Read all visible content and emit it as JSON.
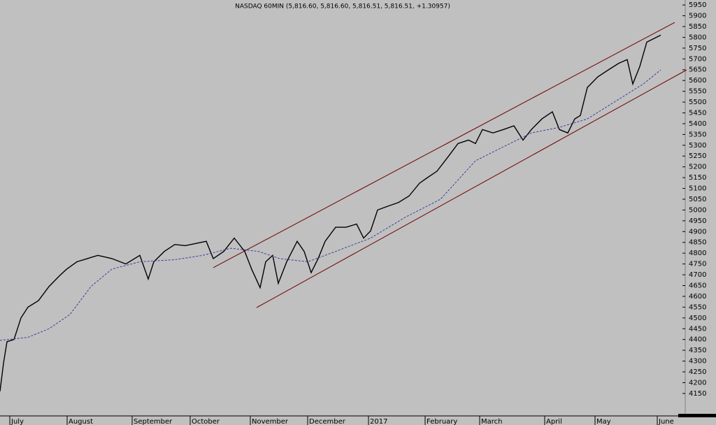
{
  "chart_data": {
    "type": "line",
    "title": "NASDAQ 60MIN (5,816.60, 5,816.60, 5,816.51, 5,816.51, +1.30957)",
    "xlim": [
      0,
      975
    ],
    "xticks": [
      {
        "value": 14,
        "label": "July"
      },
      {
        "value": 96,
        "label": "August"
      },
      {
        "value": 189,
        "label": "September"
      },
      {
        "value": 272,
        "label": "October"
      },
      {
        "value": 358,
        "label": "November"
      },
      {
        "value": 440,
        "label": "December"
      },
      {
        "value": 527,
        "label": "2017"
      },
      {
        "value": 608,
        "label": "February"
      },
      {
        "value": 686,
        "label": "March"
      },
      {
        "value": 779,
        "label": "April"
      },
      {
        "value": 851,
        "label": "May"
      },
      {
        "value": 940,
        "label": "June"
      }
    ],
    "ylim": [
      4046,
      5973
    ],
    "yticks": [
      4150,
      4200,
      4250,
      4300,
      4350,
      4400,
      4450,
      4500,
      4550,
      4600,
      4650,
      4700,
      4750,
      4800,
      4850,
      4900,
      4950,
      5000,
      5050,
      5100,
      5150,
      5200,
      5250,
      5300,
      5350,
      5400,
      5450,
      5500,
      5550,
      5600,
      5650,
      5700,
      5750,
      5800,
      5850,
      5900,
      5950
    ],
    "series": [
      {
        "color": "#000000",
        "style": "solid",
        "x": [
          0,
          5,
          10,
          20,
          30,
          40,
          55,
          70,
          85,
          95,
          110,
          125,
          140,
          160,
          180,
          200,
          212,
          220,
          235,
          250,
          265,
          280,
          295,
          305,
          320,
          335,
          350,
          360,
          372,
          380,
          390,
          398,
          410,
          425,
          435,
          445,
          455,
          465,
          480,
          495,
          510,
          520,
          530,
          540,
          555,
          570,
          585,
          600,
          610,
          625,
          640,
          655,
          670,
          680,
          690,
          705,
          720,
          735,
          748,
          760,
          775,
          790,
          800,
          812,
          822,
          830,
          840,
          855,
          870,
          885,
          897,
          905,
          915,
          925,
          935,
          945
        ],
        "values": [
          4160,
          4290,
          4390,
          4400,
          4500,
          4550,
          4580,
          4645,
          4695,
          4725,
          4760,
          4775,
          4790,
          4775,
          4750,
          4790,
          4680,
          4760,
          4808,
          4840,
          4835,
          4845,
          4855,
          4775,
          4808,
          4870,
          4808,
          4725,
          4640,
          4760,
          4790,
          4660,
          4760,
          4855,
          4808,
          4710,
          4775,
          4855,
          4920,
          4920,
          4935,
          4870,
          4903,
          5000,
          5018,
          5035,
          5065,
          5124,
          5147,
          5180,
          5243,
          5308,
          5324,
          5308,
          5373,
          5357,
          5373,
          5390,
          5324,
          5373,
          5422,
          5455,
          5373,
          5357,
          5422,
          5438,
          5568,
          5617,
          5649,
          5680,
          5697,
          5584,
          5665,
          5778,
          5794,
          5810
        ]
      },
      {
        "color": "#3c3ca0",
        "style": "dashed",
        "x": [
          0,
          40,
          70,
          100,
          130,
          160,
          200,
          250,
          290,
          330,
          370,
          400,
          440,
          480,
          530,
          580,
          630,
          680,
          720,
          760,
          800,
          840,
          880,
          920,
          945
        ],
        "values": [
          4396,
          4410,
          4450,
          4516,
          4645,
          4726,
          4760,
          4770,
          4790,
          4823,
          4808,
          4775,
          4760,
          4808,
          4870,
          4967,
          5050,
          5228,
          5293,
          5357,
          5383,
          5422,
          5503,
          5584,
          5649
        ]
      }
    ],
    "trendlines": [
      {
        "color": "#700000",
        "x": [
          305,
          965
        ],
        "values": [
          4733,
          5869
        ]
      },
      {
        "color": "#700000",
        "x": [
          367,
          982
        ],
        "values": [
          4548,
          5649
        ]
      }
    ]
  }
}
